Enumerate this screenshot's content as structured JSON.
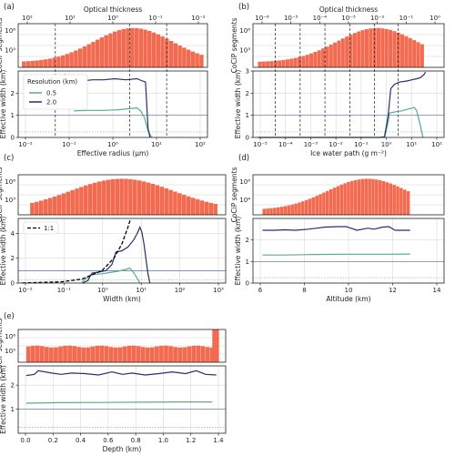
{
  "colors": {
    "hist": "#f26a4f",
    "res_2": "#2a2f6b",
    "res_05": "#5aab8c",
    "ref_line": "#4f6fb0",
    "ref_line_05": "#7fbfa8"
  },
  "chart_data": [
    {
      "panel": "(a)",
      "type": "bar",
      "top": {
        "xlabel": "Optical thickness",
        "ticklabels": [
          "10²",
          "10¹",
          "10⁰",
          "10⁻¹",
          "10⁻²"
        ]
      },
      "hist": {
        "ylabel": "CoCiP segments",
        "ytick_labels": [
          "10⁶",
          "10³"
        ],
        "x_log_range": [
          -2.2,
          2.7
        ],
        "peak_x_log": 0.8,
        "width_log": 1.05
      },
      "line": {
        "type": "line",
        "xlabel": "Effective radius (μm)",
        "ylabel": "Effective width (km)",
        "x_ticklabels": [
          "10⁻²",
          "10⁻¹",
          "10⁰",
          "10¹",
          "10²"
        ],
        "y_ticklabels": [
          "0",
          "1",
          "2"
        ],
        "ylim": [
          0,
          3
        ],
        "legend_title": "Resolution (km)",
        "series": [
          {
            "name": "0.5",
            "points": [
              [
                -0.8,
                1.2
              ],
              [
                -0.4,
                1.22
              ],
              [
                0,
                1.22
              ],
              [
                0.4,
                1.25
              ],
              [
                0.7,
                1.3
              ],
              [
                0.9,
                1.33
              ],
              [
                1.0,
                1.2
              ],
              [
                1.1,
                0.9
              ],
              [
                1.2,
                0.3
              ],
              [
                1.3,
                0
              ]
            ]
          },
          {
            "name": "2.0",
            "points": [
              [
                -1.05,
                2.85
              ],
              [
                -0.9,
                2.6
              ],
              [
                -0.6,
                2.55
              ],
              [
                -0.3,
                2.6
              ],
              [
                0,
                2.6
              ],
              [
                0.3,
                2.65
              ],
              [
                0.6,
                2.6
              ],
              [
                0.9,
                2.65
              ],
              [
                1.05,
                2.55
              ],
              [
                1.13,
                2.5
              ],
              [
                1.16,
                1.6
              ],
              [
                1.2,
                0.4
              ],
              [
                1.25,
                0
              ]
            ]
          }
        ],
        "ref_lines": [
          1.0,
          0.25
        ],
        "vlines_log": [
          -1.3,
          0.7,
          1.7
        ]
      }
    },
    {
      "panel": "(b)",
      "type": "bar",
      "top": {
        "xlabel": "Optical thickness",
        "ticklabels": [
          "10⁻⁶",
          "10⁻⁵",
          "10⁻⁴",
          "10⁻³",
          "10⁻²",
          "10⁻¹",
          "10⁰"
        ]
      },
      "hist": {
        "ylabel": "CoCiP segments",
        "ytick_labels": [
          "10⁶",
          "10³"
        ],
        "x_log_range": [
          -5.3,
          1.4
        ],
        "peak_x_log": -0.5,
        "width_log": 1.6
      },
      "line": {
        "type": "line",
        "xlabel": "Ice water path (g m⁻²)",
        "ylabel": "Effective width (km)",
        "x_ticklabels": [
          "10⁻⁵",
          "10⁻⁴",
          "10⁻³",
          "10⁻²",
          "10⁻¹",
          "10⁰",
          "10¹",
          "10²"
        ],
        "y_ticklabels": [
          "0",
          "1",
          "2",
          "3"
        ],
        "ylim": [
          0,
          3
        ],
        "series": [
          {
            "name": "0.5",
            "points": [
              [
                -0.2,
                0
              ],
              [
                -0.05,
                0.7
              ],
              [
                0,
                1.1
              ],
              [
                0.2,
                1.15
              ],
              [
                0.5,
                1.2
              ],
              [
                0.8,
                1.3
              ],
              [
                1.0,
                1.35
              ],
              [
                1.1,
                1.2
              ],
              [
                1.25,
                0.5
              ],
              [
                1.35,
                0
              ]
            ]
          },
          {
            "name": "2.0",
            "points": [
              [
                -5.3,
                0
              ],
              [
                -0.4,
                0
              ],
              [
                -0.2,
                0.03
              ],
              [
                -0.05,
                1.0
              ],
              [
                0.05,
                2.2
              ],
              [
                0.2,
                2.4
              ],
              [
                0.4,
                2.5
              ],
              [
                0.7,
                2.55
              ],
              [
                0.9,
                2.6
              ],
              [
                1.1,
                2.65
              ],
              [
                1.25,
                2.7
              ],
              [
                1.4,
                2.85
              ],
              [
                1.45,
                2.95
              ]
            ]
          }
        ],
        "ref_lines": [
          1.0,
          0.25
        ],
        "vlines_log": [
          -4.6,
          -3.6,
          -2.6,
          -1.6,
          -0.6,
          0.35
        ]
      }
    },
    {
      "panel": "(c)",
      "type": "bar",
      "hist": {
        "ylabel": "CoCiP segments",
        "ytick_labels": [
          "10⁶",
          "10³"
        ],
        "x_log_range": [
          -1.8,
          2.9
        ],
        "peak_x_log": 0.5,
        "width_log": 1.3
      },
      "line": {
        "type": "line",
        "xlabel": "Width (km)",
        "ylabel": "Effective width (km)",
        "x_ticklabels": [
          "10⁻²",
          "10⁻¹",
          "10⁰",
          "10¹",
          "10²",
          "10³"
        ],
        "y_ticklabels": [
          "0",
          "2",
          "4"
        ],
        "ylim": [
          0,
          5.2
        ],
        "legend_label": "1:1",
        "series": [
          {
            "name": "0.5",
            "points": [
              [
                -0.5,
                0.1
              ],
              [
                -0.3,
                0.6
              ],
              [
                -0.2,
                0.7
              ],
              [
                0,
                0.75
              ],
              [
                0.2,
                0.85
              ],
              [
                0.4,
                0.95
              ],
              [
                0.6,
                1.1
              ],
              [
                0.7,
                1.2
              ],
              [
                0.8,
                0.8
              ],
              [
                0.9,
                0.3
              ],
              [
                0.95,
                0
              ]
            ]
          },
          {
            "name": "2.0",
            "points": [
              [
                -0.5,
                0
              ],
              [
                -0.35,
                0.2
              ],
              [
                -0.3,
                0.55
              ],
              [
                -0.25,
                0.8
              ],
              [
                -0.05,
                0.9
              ],
              [
                0.1,
                1.0
              ],
              [
                0.25,
                1.5
              ],
              [
                0.3,
                2.0
              ],
              [
                0.35,
                2.5
              ],
              [
                0.5,
                2.6
              ],
              [
                0.65,
                2.9
              ],
              [
                0.8,
                3.5
              ],
              [
                0.9,
                4.1
              ],
              [
                0.95,
                4.5
              ],
              [
                1.0,
                4.1
              ],
              [
                1.05,
                3.2
              ],
              [
                1.1,
                2.0
              ],
              [
                1.15,
                0.8
              ],
              [
                1.2,
                0
              ]
            ]
          },
          {
            "name": "1:1",
            "points": [
              [
                -2.0,
                0.01
              ],
              [
                -1,
                0.1
              ],
              [
                -0.5,
                0.32
              ],
              [
                0,
                1.0
              ],
              [
                0.3,
                2.0
              ],
              [
                0.5,
                3.16
              ],
              [
                0.65,
                4.5
              ],
              [
                0.72,
                5.2
              ]
            ]
          }
        ],
        "ref_lines": [
          1.0,
          0.25
        ]
      }
    },
    {
      "panel": "(d)",
      "type": "bar",
      "hist": {
        "ylabel": "CoCiP segments",
        "ytick_labels": [
          "10⁶",
          "10⁴"
        ],
        "x_range": [
          6.05,
          13.0
        ],
        "peak_x": 11.0,
        "width": 1.9
      },
      "line": {
        "type": "line",
        "xlabel": "Altitude (km)",
        "ylabel": "Effective width (km)",
        "x_ticklabels": [
          "6",
          "8",
          "10",
          "12",
          "14"
        ],
        "y_ticklabels": [
          "0",
          "1",
          "2"
        ],
        "ylim": [
          0,
          3
        ],
        "series": [
          {
            "name": "0.5",
            "points": [
              [
                6.05,
                1.3
              ],
              [
                7,
                1.3
              ],
              [
                8,
                1.32
              ],
              [
                9,
                1.33
              ],
              [
                10,
                1.34
              ],
              [
                11,
                1.34
              ],
              [
                12,
                1.34
              ],
              [
                13,
                1.35
              ]
            ]
          },
          {
            "name": "2.0",
            "points": [
              [
                6.05,
                2.45
              ],
              [
                6.6,
                2.45
              ],
              [
                7.1,
                2.47
              ],
              [
                7.6,
                2.45
              ],
              [
                8.2,
                2.5
              ],
              [
                8.6,
                2.55
              ],
              [
                9.0,
                2.6
              ],
              [
                9.6,
                2.62
              ],
              [
                10.0,
                2.62
              ],
              [
                10.5,
                2.45
              ],
              [
                11.0,
                2.55
              ],
              [
                11.3,
                2.5
              ],
              [
                11.7,
                2.6
              ],
              [
                12.0,
                2.62
              ],
              [
                12.3,
                2.45
              ],
              [
                13.0,
                2.45
              ]
            ]
          }
        ],
        "ref_lines": [
          1.0,
          0.25
        ]
      }
    },
    {
      "panel": "(e)",
      "type": "bar",
      "hist": {
        "ylabel": "CoCiP segments",
        "ytick_labels": [
          "10⁶",
          "10⁵"
        ],
        "x_range": [
          0.06,
          1.5
        ],
        "flat_level": 0.48,
        "spike": [
          1.45,
          1.5,
          1.0
        ]
      },
      "line": {
        "type": "line",
        "xlabel": "Depth (km)",
        "ylabel": "Effective width (km)",
        "x_ticklabels": [
          "0.0",
          "0.2",
          "0.4",
          "0.6",
          "0.8",
          "1.0",
          "1.2",
          "1.4"
        ],
        "y_ticklabels": [
          "1",
          "2"
        ],
        "ylim": [
          0,
          2.8
        ],
        "series": [
          {
            "name": "0.5",
            "points": [
              [
                0.06,
                1.25
              ],
              [
                0.3,
                1.27
              ],
              [
                0.6,
                1.28
              ],
              [
                0.9,
                1.29
              ],
              [
                1.2,
                1.3
              ],
              [
                1.45,
                1.3
              ]
            ]
          },
          {
            "name": "2.0",
            "points": [
              [
                0.06,
                2.4
              ],
              [
                0.12,
                2.45
              ],
              [
                0.15,
                2.6
              ],
              [
                0.25,
                2.5
              ],
              [
                0.32,
                2.45
              ],
              [
                0.4,
                2.5
              ],
              [
                0.5,
                2.48
              ],
              [
                0.6,
                2.42
              ],
              [
                0.7,
                2.55
              ],
              [
                0.78,
                2.45
              ],
              [
                0.85,
                2.5
              ],
              [
                0.95,
                2.42
              ],
              [
                1.05,
                2.48
              ],
              [
                1.15,
                2.55
              ],
              [
                1.25,
                2.48
              ],
              [
                1.33,
                2.6
              ],
              [
                1.4,
                2.45
              ],
              [
                1.48,
                2.42
              ]
            ]
          }
        ],
        "ref_lines": [
          1.0,
          0.25
        ]
      }
    }
  ]
}
